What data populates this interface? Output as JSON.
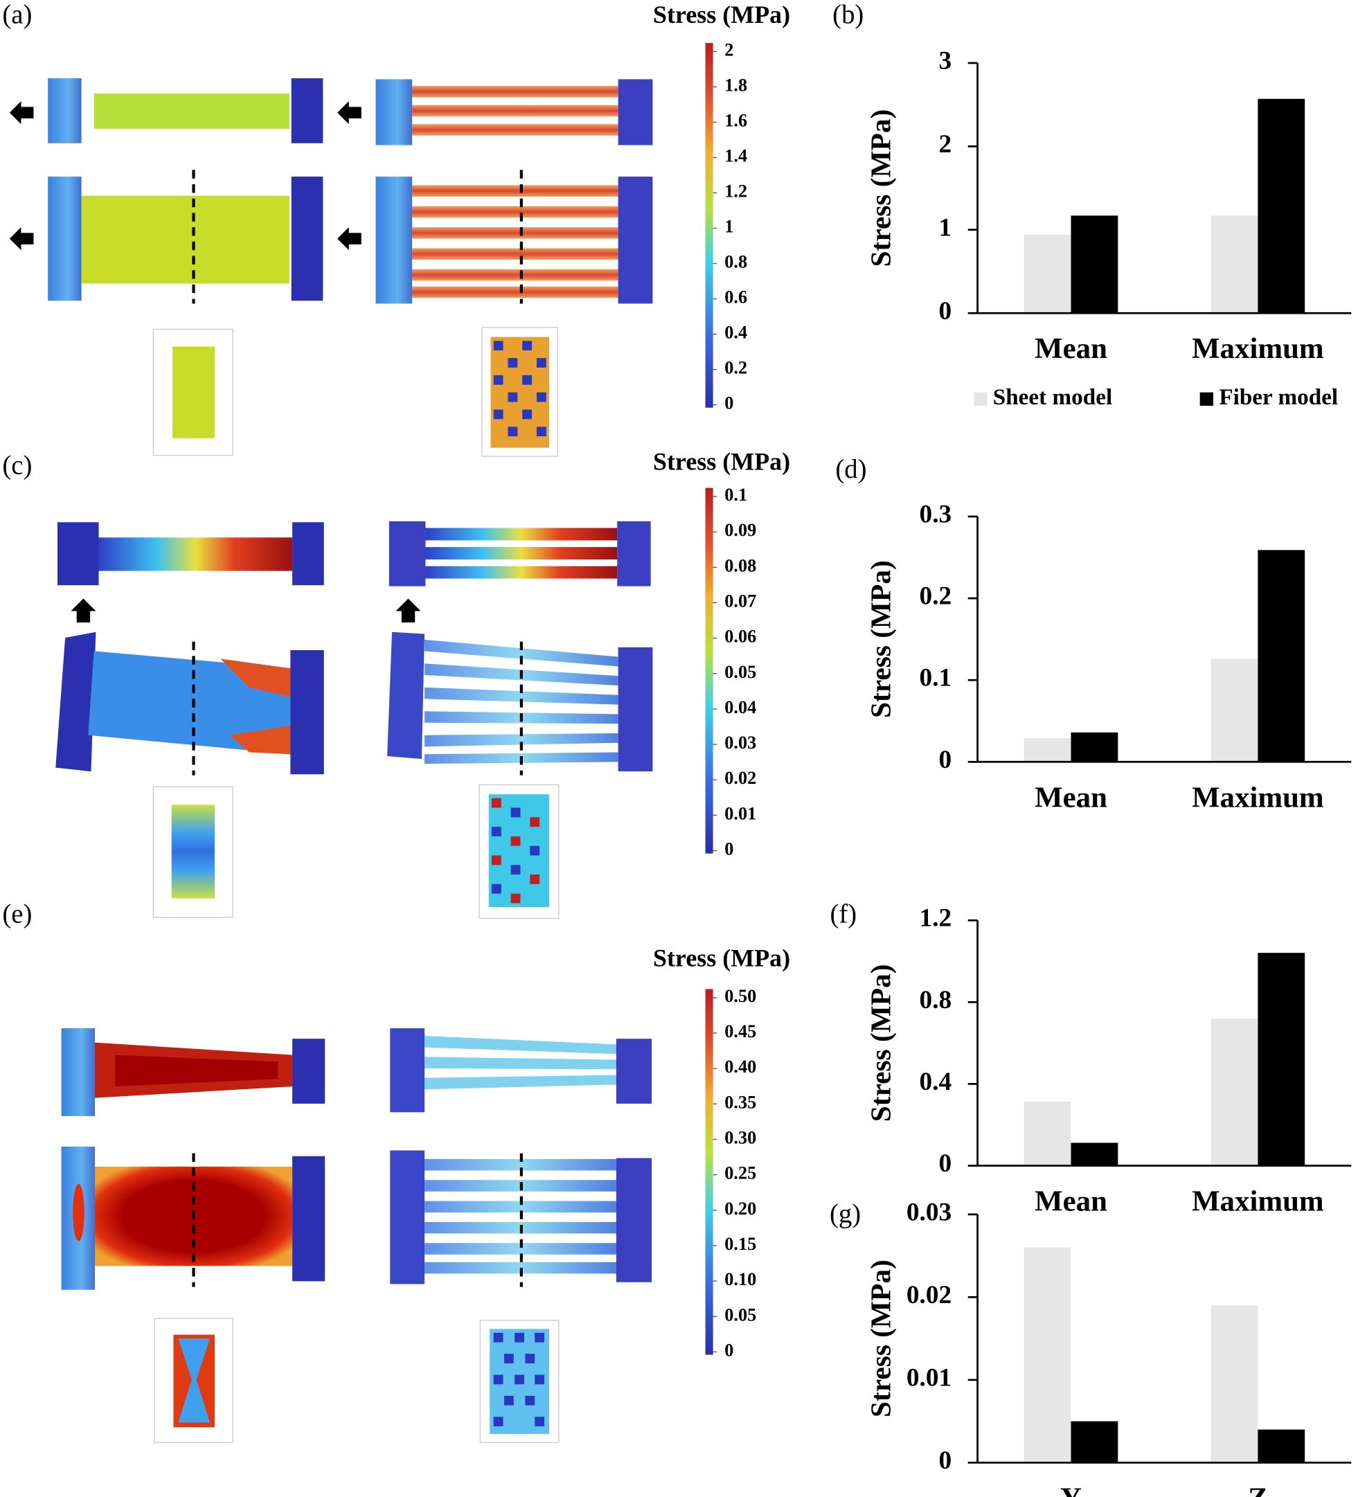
{
  "chart_data": [
    {
      "type": "colorbar",
      "label": "(a)",
      "title": "Stress (MPa)",
      "ylim": [
        0,
        2
      ],
      "yticks": [
        0,
        0.2,
        0.4,
        0.6,
        0.8,
        1,
        1.2,
        1.4,
        1.6,
        1.8,
        2
      ]
    },
    {
      "type": "bar",
      "label": "(b)",
      "ylabel": "Stress (MPa)",
      "categories": [
        "Mean",
        "Maximum"
      ],
      "series": [
        {
          "name": "Sheet model",
          "color": "#e6e6e6",
          "values": [
            0.94,
            1.17
          ]
        },
        {
          "name": "Fiber model",
          "color": "#000000",
          "values": [
            1.17,
            2.57
          ]
        }
      ],
      "ylim": [
        0,
        3
      ],
      "yticks": [
        0,
        1,
        2,
        3
      ],
      "legend": "bottom"
    },
    {
      "type": "colorbar",
      "label": "(c)",
      "title": "Stress (MPa)",
      "ylim": [
        0,
        0.1
      ],
      "yticks": [
        0,
        0.01,
        0.02,
        0.03,
        0.04,
        0.05,
        0.06,
        0.07,
        0.08,
        0.09,
        0.1
      ]
    },
    {
      "type": "bar",
      "label": "(d)",
      "ylabel": "Stress (MPa)",
      "categories": [
        "Mean",
        "Maximum"
      ],
      "series": [
        {
          "color": "#e6e6e6",
          "values": [
            0.029,
            0.126
          ]
        },
        {
          "color": "#000000",
          "values": [
            0.036,
            0.259
          ]
        }
      ],
      "ylim": [
        0,
        0.3
      ],
      "yticks": [
        0,
        0.1,
        0.2,
        0.3
      ]
    },
    {
      "type": "colorbar",
      "label": "(e)",
      "title": "Stress (MPa)",
      "ylim": [
        0,
        0.5
      ],
      "yticks": [
        0,
        0.05,
        {
          "value": 0.1,
          "label": "0.10"
        },
        0.15,
        {
          "value": 0.2,
          "label": "0.20"
        },
        0.25,
        {
          "value": 0.3,
          "label": "0.30"
        },
        0.35,
        {
          "value": 0.4,
          "label": "0.40"
        },
        0.45,
        {
          "value": 0.5,
          "label": "0.50"
        }
      ]
    },
    {
      "type": "bar",
      "label": "(f)",
      "ylabel": "Stress (MPa)",
      "categories": [
        "Mean",
        "Maximum"
      ],
      "series": [
        {
          "color": "#e6e6e6",
          "values": [
            0.313,
            0.719
          ]
        },
        {
          "color": "#000000",
          "values": [
            0.112,
            1.041
          ]
        }
      ],
      "ylim": [
        0,
        1.2
      ],
      "yticks": [
        0,
        0.4,
        0.8,
        1.2
      ]
    },
    {
      "type": "bar",
      "label": "(g)",
      "ylabel": "Stress (MPa)",
      "categories": [
        "Y",
        "Z"
      ],
      "series": [
        {
          "color": "#e6e6e6",
          "values": [
            0.026,
            0.019
          ]
        },
        {
          "color": "#000000",
          "values": [
            0.005,
            0.004
          ]
        }
      ],
      "ylim": [
        0,
        0.03
      ],
      "yticks": [
        0,
        0.01,
        0.02,
        0.03
      ]
    }
  ]
}
